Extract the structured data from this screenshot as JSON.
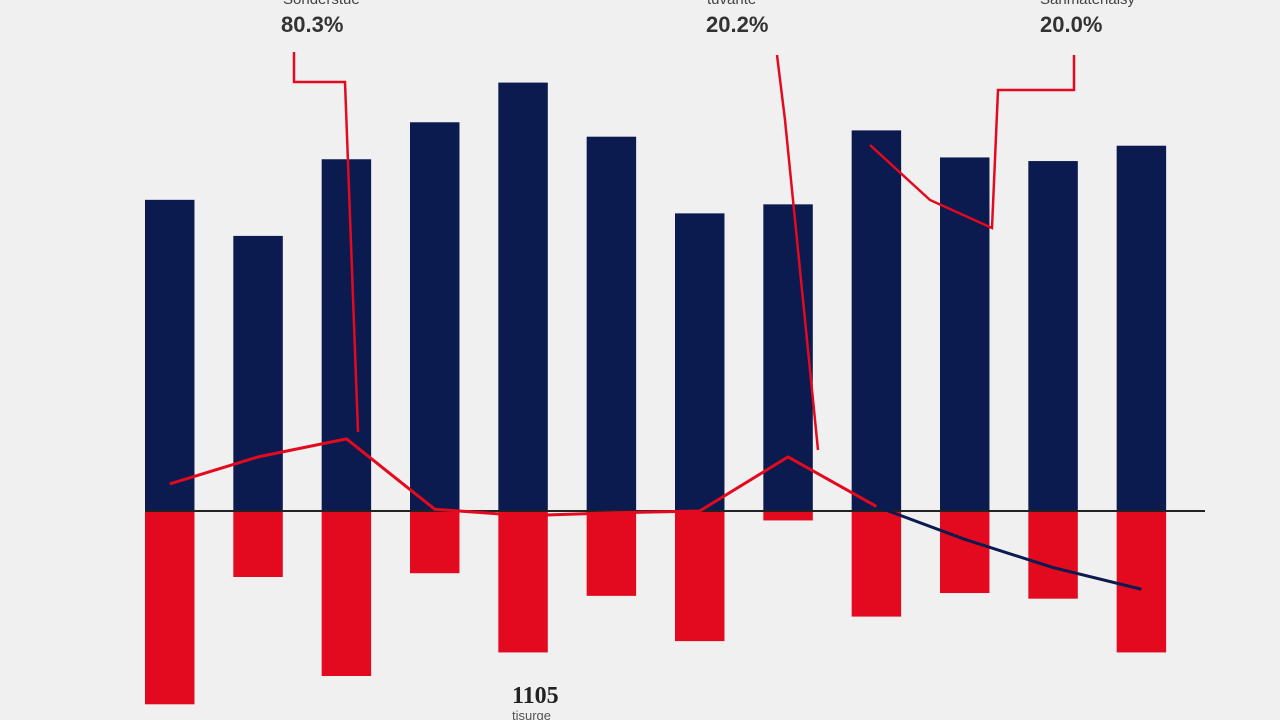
{
  "chart_data": {
    "type": "bar",
    "categories": [
      "",
      "",
      "",
      "",
      "",
      "",
      "",
      "",
      "",
      "",
      "",
      ""
    ],
    "series": [
      {
        "values": [
          345,
          305,
          390,
          431,
          475,
          415,
          330,
          340,
          422,
          392,
          388,
          405
        ],
        "color": "#0b1a4f"
      },
      {
        "values": [
          -205,
          -70,
          -175,
          -66,
          -150,
          -90,
          -138,
          -10,
          -112,
          -87,
          -93,
          -150
        ],
        "color": "#e30a1f"
      }
    ],
    "ylim": [
      -210,
      520
    ],
    "grid": false
  },
  "lines": [
    {
      "color": "#e30a1f",
      "points": [
        [
          0,
          30
        ],
        [
          1,
          60
        ],
        [
          2,
          80
        ],
        [
          3,
          2
        ],
        [
          4,
          -5
        ],
        [
          5,
          -2
        ],
        [
          6,
          0
        ],
        [
          7,
          60
        ],
        [
          8,
          5
        ]
      ]
    },
    {
      "color": "#0b1a4f",
      "points": [
        [
          8,
          5
        ],
        [
          9,
          -30
        ],
        [
          10,
          -60
        ],
        [
          11,
          -83
        ]
      ]
    }
  ],
  "annotations": [
    {
      "text": "Sonderstue",
      "value": "80.3%"
    },
    {
      "text": "tuvante",
      "value": "20.2%"
    },
    {
      "text": "Sanmaterialsy",
      "value": "20.0%"
    }
  ],
  "footer": {
    "title": "1105",
    "subtitle": "tisurge"
  }
}
